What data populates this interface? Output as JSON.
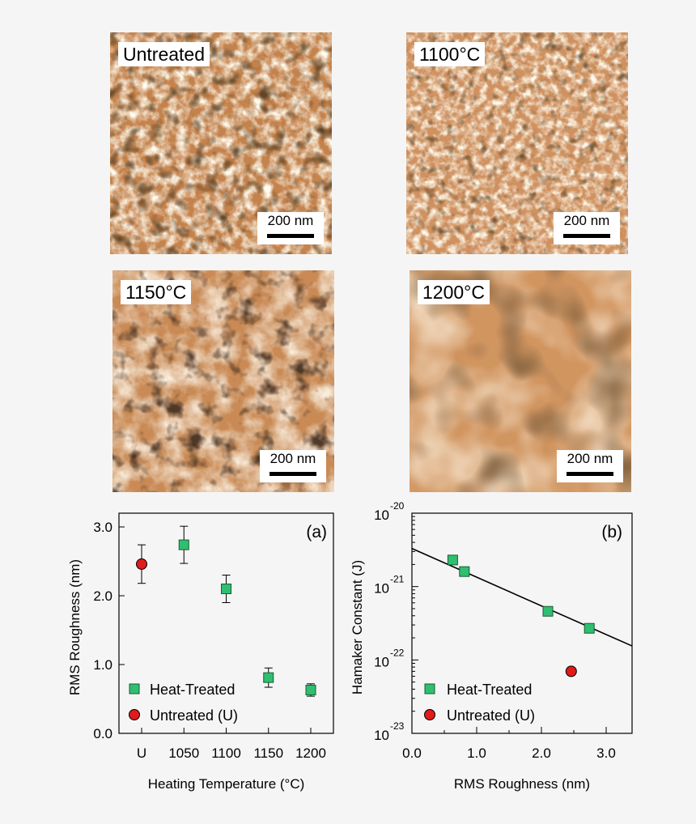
{
  "afm_images": [
    {
      "label": "Untreated",
      "scale": "200 nm"
    },
    {
      "label": "1100°C",
      "scale": "200 nm"
    },
    {
      "label": "1150°C",
      "scale": "200 nm"
    },
    {
      "label": "1200°C",
      "scale": "200 nm"
    }
  ],
  "chart_data": [
    {
      "type": "scatter",
      "panel_label": "(a)",
      "xlabel": "Heating Temperature (°C)",
      "ylabel": "RMS Roughness (nm)",
      "categories": [
        "U",
        "1050",
        "1100",
        "1150",
        "1200"
      ],
      "ylim": [
        0,
        3.2
      ],
      "yticks": [
        "0.0",
        "1.0",
        "2.0",
        "3.0"
      ],
      "legend_position": "bottom-left",
      "series": [
        {
          "name": "Heat-Treated",
          "marker": "square",
          "color": "#2fbf71",
          "points": [
            {
              "x": "1050",
              "y": 2.74,
              "err": 0.27
            },
            {
              "x": "1100",
              "y": 2.1,
              "err": 0.2
            },
            {
              "x": "1150",
              "y": 0.81,
              "err": 0.14
            },
            {
              "x": "1200",
              "y": 0.63,
              "err": 0.09
            }
          ]
        },
        {
          "name": "Untreated (U)",
          "marker": "circle",
          "color": "#e01b1b",
          "points": [
            {
              "x": "U",
              "y": 2.46,
              "err": 0.28
            }
          ]
        }
      ]
    },
    {
      "type": "scatter",
      "panel_label": "(b)",
      "xlabel": "RMS Roughness (nm)",
      "ylabel": "Hamaker Constant (J)",
      "xlim": [
        0,
        3.4
      ],
      "xticks": [
        "0.0",
        "1.0",
        "2.0",
        "3.0"
      ],
      "ylim": [
        1e-23,
        1e-20
      ],
      "yscale": "log",
      "yticks": [
        {
          "base": "10",
          "exp": "-20"
        },
        {
          "base": "10",
          "exp": "-21"
        },
        {
          "base": "10",
          "exp": "-22"
        },
        {
          "base": "10",
          "exp": "-23"
        }
      ],
      "legend_position": "bottom-left",
      "fit_line": {
        "x": [
          0,
          3.4
        ],
        "y": [
          3.3e-21,
          1.55e-22
        ]
      },
      "series": [
        {
          "name": "Heat-Treated",
          "marker": "square",
          "color": "#2fbf71",
          "points": [
            {
              "x": 0.63,
              "y": 2.3e-21
            },
            {
              "x": 0.81,
              "y": 1.6e-21
            },
            {
              "x": 2.1,
              "y": 4.6e-22
            },
            {
              "x": 2.74,
              "y": 2.7e-22
            }
          ]
        },
        {
          "name": "Untreated (U)",
          "marker": "circle",
          "color": "#e01b1b",
          "points": [
            {
              "x": 2.46,
              "y": 7e-23
            }
          ]
        }
      ]
    }
  ]
}
